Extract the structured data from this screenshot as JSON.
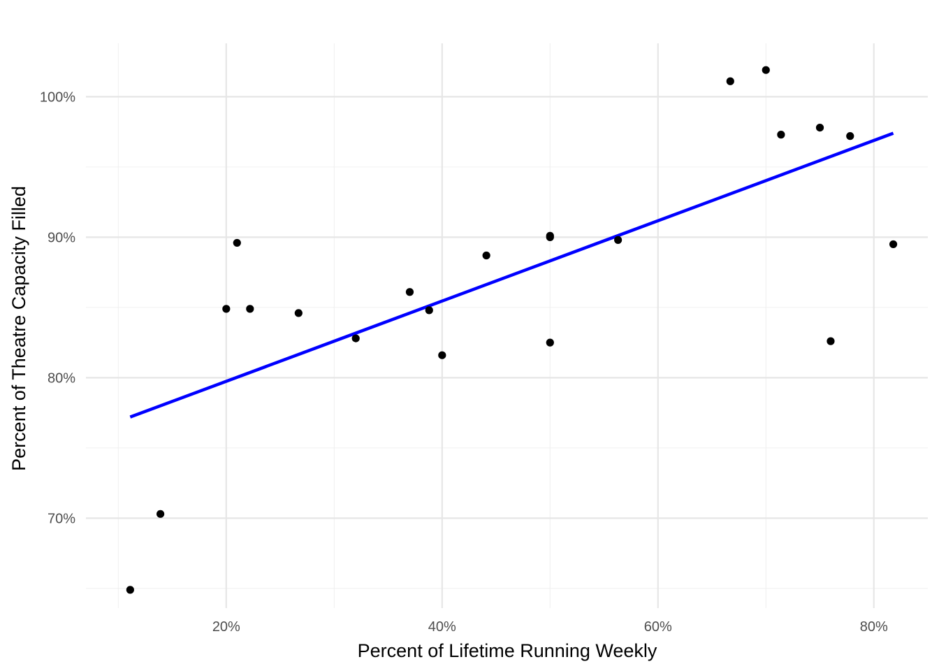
{
  "chart_data": {
    "type": "scatter",
    "title": "",
    "xlabel": "Percent of Lifetime Running Weekly",
    "ylabel": "Percent of Theatre Capacity Filled",
    "xlim": [
      0.07,
      0.85
    ],
    "ylim": [
      0.636,
      1.038
    ],
    "x_ticks": [
      0.2,
      0.4,
      0.6,
      0.8
    ],
    "x_tick_labels": [
      "20%",
      "40%",
      "60%",
      "80%"
    ],
    "x_minor": [
      0.1,
      0.3,
      0.5,
      0.7
    ],
    "y_ticks": [
      0.7,
      0.8,
      0.9,
      1.0
    ],
    "y_tick_labels": [
      "70%",
      "80%",
      "90%",
      "100%"
    ],
    "y_minor": [
      0.65,
      0.75,
      0.85,
      0.95
    ],
    "grid": true,
    "legend": "none",
    "point_color": "#000000",
    "line_color": "#0000ff",
    "points": [
      {
        "x": 0.111,
        "y": 0.649
      },
      {
        "x": 0.139,
        "y": 0.703
      },
      {
        "x": 0.2,
        "y": 0.849
      },
      {
        "x": 0.21,
        "y": 0.896
      },
      {
        "x": 0.222,
        "y": 0.849
      },
      {
        "x": 0.267,
        "y": 0.846
      },
      {
        "x": 0.32,
        "y": 0.828
      },
      {
        "x": 0.37,
        "y": 0.861
      },
      {
        "x": 0.388,
        "y": 0.848
      },
      {
        "x": 0.4,
        "y": 0.816
      },
      {
        "x": 0.441,
        "y": 0.887
      },
      {
        "x": 0.5,
        "y": 0.901
      },
      {
        "x": 0.5,
        "y": 0.9
      },
      {
        "x": 0.5,
        "y": 0.825
      },
      {
        "x": 0.563,
        "y": 0.898
      },
      {
        "x": 0.667,
        "y": 1.011
      },
      {
        "x": 0.7,
        "y": 1.019
      },
      {
        "x": 0.714,
        "y": 0.973
      },
      {
        "x": 0.75,
        "y": 0.978
      },
      {
        "x": 0.76,
        "y": 0.826
      },
      {
        "x": 0.778,
        "y": 0.972
      },
      {
        "x": 0.818,
        "y": 0.895
      }
    ],
    "trend_line": {
      "x": [
        0.111,
        0.818
      ],
      "y": [
        0.772,
        0.974
      ]
    }
  }
}
